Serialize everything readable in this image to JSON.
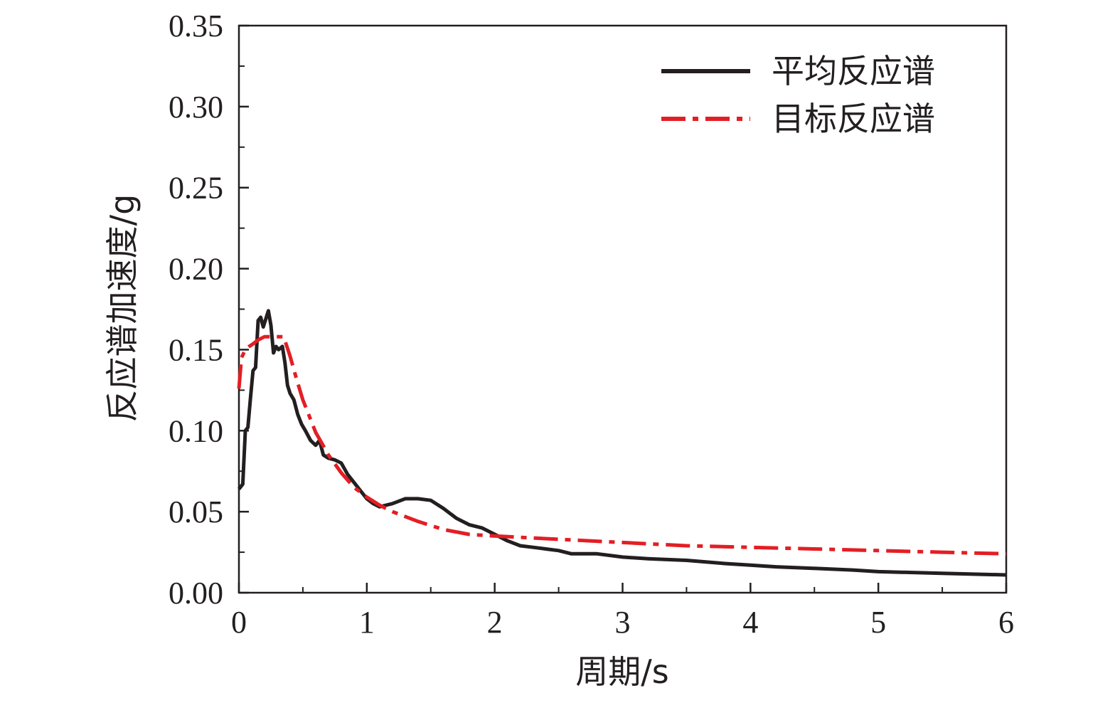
{
  "chart_data": {
    "type": "line",
    "xlabel": "周期/s",
    "ylabel": "反应谱加速度/g",
    "xlim": [
      0,
      6
    ],
    "ylim": [
      0,
      0.35
    ],
    "x_ticks": [
      0,
      1,
      2,
      3,
      4,
      5,
      6
    ],
    "y_ticks": [
      0.0,
      0.05,
      0.1,
      0.15,
      0.2,
      0.25,
      0.3,
      0.35
    ],
    "x_tick_labels": [
      "0",
      "1",
      "2",
      "3",
      "4",
      "5",
      "6"
    ],
    "y_tick_labels": [
      "0.00",
      "0.05",
      "0.10",
      "0.15",
      "0.20",
      "0.25",
      "0.30",
      "0.35"
    ],
    "legend_position": "top-right",
    "grid": false,
    "series": [
      {
        "name": "平均反应谱",
        "color": "#231f20",
        "style": "solid",
        "x": [
          0.0,
          0.03,
          0.05,
          0.07,
          0.09,
          0.11,
          0.13,
          0.15,
          0.17,
          0.19,
          0.21,
          0.23,
          0.25,
          0.27,
          0.29,
          0.31,
          0.34,
          0.36,
          0.38,
          0.4,
          0.43,
          0.46,
          0.49,
          0.52,
          0.56,
          0.6,
          0.63,
          0.66,
          0.7,
          0.75,
          0.8,
          0.85,
          0.9,
          0.95,
          1.0,
          1.05,
          1.1,
          1.15,
          1.2,
          1.3,
          1.4,
          1.5,
          1.6,
          1.7,
          1.8,
          1.9,
          2.0,
          2.1,
          2.2,
          2.3,
          2.4,
          2.5,
          2.6,
          2.8,
          3.0,
          3.2,
          3.5,
          3.8,
          4.0,
          4.2,
          4.5,
          4.8,
          5.0,
          5.5,
          6.0
        ],
        "y": [
          0.064,
          0.067,
          0.1,
          0.102,
          0.12,
          0.137,
          0.139,
          0.168,
          0.17,
          0.164,
          0.169,
          0.174,
          0.165,
          0.148,
          0.152,
          0.15,
          0.152,
          0.142,
          0.128,
          0.123,
          0.119,
          0.11,
          0.104,
          0.1,
          0.094,
          0.091,
          0.094,
          0.085,
          0.083,
          0.082,
          0.08,
          0.073,
          0.068,
          0.063,
          0.058,
          0.055,
          0.053,
          0.054,
          0.055,
          0.058,
          0.058,
          0.057,
          0.052,
          0.046,
          0.042,
          0.04,
          0.036,
          0.032,
          0.029,
          0.028,
          0.027,
          0.026,
          0.024,
          0.024,
          0.022,
          0.021,
          0.02,
          0.018,
          0.017,
          0.016,
          0.015,
          0.014,
          0.013,
          0.012,
          0.011
        ]
      },
      {
        "name": "目标反应谱",
        "color": "#e31e24",
        "style": "dash-dot",
        "x": [
          0.0,
          0.02,
          0.05,
          0.08,
          0.1,
          0.15,
          0.2,
          0.25,
          0.3,
          0.35,
          0.4,
          0.45,
          0.5,
          0.6,
          0.7,
          0.8,
          0.9,
          1.0,
          1.1,
          1.2,
          1.4,
          1.6,
          1.8,
          2.0,
          2.5,
          3.0,
          3.5,
          4.0,
          4.5,
          5.0,
          5.5,
          6.0
        ],
        "y": [
          0.126,
          0.145,
          0.15,
          0.152,
          0.153,
          0.156,
          0.158,
          0.158,
          0.158,
          0.158,
          0.146,
          0.132,
          0.119,
          0.099,
          0.085,
          0.074,
          0.065,
          0.059,
          0.054,
          0.05,
          0.044,
          0.039,
          0.036,
          0.035,
          0.033,
          0.031,
          0.029,
          0.028,
          0.027,
          0.026,
          0.025,
          0.024
        ]
      }
    ]
  }
}
